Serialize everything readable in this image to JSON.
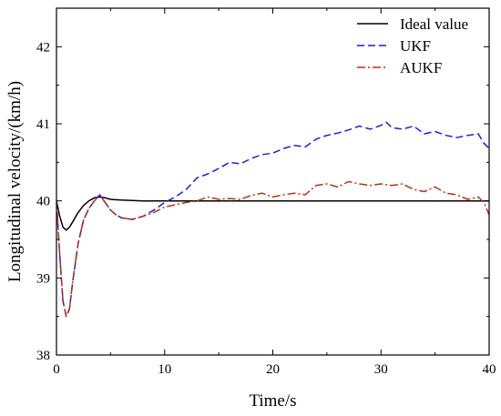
{
  "chart_data": {
    "type": "line",
    "title": "",
    "xlabel": "Time/s",
    "ylabel": "Longitudinal velocity/(km/h)",
    "xlim": [
      0,
      40
    ],
    "ylim": [
      38,
      42.5
    ],
    "xticks": [
      0,
      10,
      20,
      30,
      40
    ],
    "yticks": [
      38,
      39,
      40,
      41,
      42
    ],
    "x_tick_labels": [
      "0",
      "10",
      "20",
      "30",
      "40"
    ],
    "y_tick_labels": [
      "38",
      "39",
      "40",
      "41",
      "42"
    ],
    "grid": false,
    "legend_position": "top-right",
    "series": [
      {
        "name": "Ideal value",
        "color": "#000000",
        "style": "solid",
        "x": [
          0,
          0.3,
          0.6,
          0.9,
          1.2,
          1.6,
          2.0,
          2.5,
          3.0,
          3.5,
          4.0,
          4.5,
          5.0,
          6.0,
          8.0,
          10.0,
          15.0,
          20.0,
          25.0,
          30.0,
          35.0,
          40.0
        ],
        "y": [
          40.0,
          39.8,
          39.66,
          39.62,
          39.66,
          39.75,
          39.85,
          39.94,
          40.0,
          40.04,
          40.05,
          40.04,
          40.02,
          40.01,
          40.0,
          40.0,
          40.0,
          40.0,
          40.0,
          40.0,
          40.0,
          40.0
        ]
      },
      {
        "name": "UKF",
        "color": "#1f1fd6",
        "style": "dashed",
        "x": [
          0,
          0.3,
          0.6,
          0.9,
          1.2,
          1.5,
          2.0,
          2.5,
          3.0,
          3.5,
          4.0,
          4.5,
          5.0,
          5.5,
          6.0,
          7.0,
          8.0,
          9.0,
          10.0,
          11.0,
          12.0,
          13.0,
          14.0,
          15.0,
          16.0,
          17.0,
          18.0,
          19.0,
          20.0,
          21.0,
          22.0,
          23.0,
          24.0,
          25.0,
          26.0,
          27.0,
          28.0,
          29.0,
          30.0,
          30.5,
          31.0,
          32.0,
          33.0,
          34.0,
          35.0,
          36.0,
          37.0,
          38.0,
          39.0,
          39.5,
          40.0
        ],
        "y": [
          40.0,
          39.3,
          38.7,
          38.5,
          38.6,
          38.95,
          39.45,
          39.75,
          39.9,
          40.0,
          40.08,
          39.98,
          39.88,
          39.82,
          39.78,
          39.76,
          39.8,
          39.88,
          39.98,
          40.05,
          40.15,
          40.3,
          40.35,
          40.42,
          40.5,
          40.48,
          40.55,
          40.6,
          40.62,
          40.68,
          40.72,
          40.7,
          40.8,
          40.85,
          40.88,
          40.92,
          40.97,
          40.93,
          40.98,
          41.02,
          40.95,
          40.93,
          40.97,
          40.87,
          40.9,
          40.85,
          40.82,
          40.85,
          40.87,
          40.75,
          40.68
        ]
      },
      {
        "name": "AUKF",
        "color": "#b5301a",
        "style": "dashdot",
        "x": [
          0,
          0.3,
          0.6,
          0.9,
          1.2,
          1.5,
          2.0,
          2.5,
          3.0,
          3.5,
          4.0,
          4.5,
          5.0,
          5.5,
          6.0,
          7.0,
          8.0,
          9.0,
          10.0,
          11.0,
          12.0,
          13.0,
          14.0,
          15.0,
          16.0,
          17.0,
          18.0,
          19.0,
          20.0,
          21.0,
          22.0,
          23.0,
          24.0,
          25.0,
          26.0,
          27.0,
          28.0,
          29.0,
          30.0,
          31.0,
          32.0,
          33.0,
          34.0,
          35.0,
          36.0,
          37.0,
          38.0,
          39.0,
          39.5,
          40.0
        ],
        "y": [
          40.0,
          39.3,
          38.7,
          38.5,
          38.6,
          38.95,
          39.45,
          39.75,
          39.9,
          40.0,
          40.08,
          39.98,
          39.88,
          39.82,
          39.78,
          39.76,
          39.8,
          39.85,
          39.92,
          39.95,
          39.98,
          40.0,
          40.05,
          40.02,
          40.03,
          40.02,
          40.07,
          40.1,
          40.05,
          40.08,
          40.1,
          40.08,
          40.2,
          40.22,
          40.18,
          40.25,
          40.22,
          40.2,
          40.22,
          40.2,
          40.22,
          40.15,
          40.12,
          40.18,
          40.1,
          40.08,
          40.02,
          40.05,
          39.98,
          39.82
        ]
      }
    ]
  }
}
